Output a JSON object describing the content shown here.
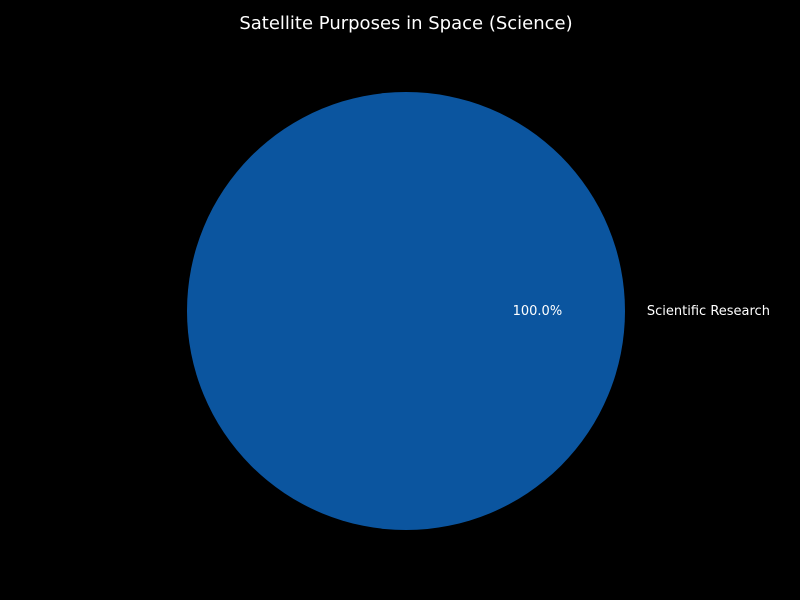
{
  "chart_data": {
    "type": "pie",
    "title": "Satellite Purposes in Space (Science)",
    "labels": [
      "Scientific Research"
    ],
    "values": [
      100.0
    ],
    "percent_labels": [
      "100.0%"
    ],
    "colors": [
      "#0b559f"
    ],
    "background": "#000000",
    "text_color": "#ffffff"
  }
}
